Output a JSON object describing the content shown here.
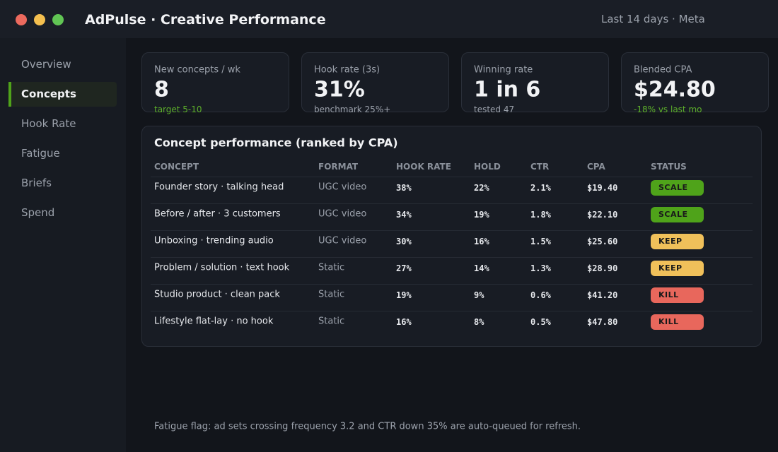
{
  "header": {
    "title": "AdPulse · Creative Performance",
    "range": "Last 14 days · Meta"
  },
  "nav": [
    "Overview",
    "Concepts",
    "Hook Rate",
    "Fatigue",
    "Briefs",
    "Spend"
  ],
  "active_nav": 1,
  "kpis": [
    {
      "label": "New concepts / wk",
      "value": "8",
      "note": "target 5-10",
      "note_tone": "good"
    },
    {
      "label": "Hook rate (3s)",
      "value": "31%",
      "note": "benchmark 25%+",
      "note_tone": "muted"
    },
    {
      "label": "Winning rate",
      "value": "1 in 6",
      "note": "tested 47",
      "note_tone": "muted"
    },
    {
      "label": "Blended CPA",
      "value": "$24.80",
      "note": "-18% vs last mo",
      "note_tone": "good"
    }
  ],
  "table": {
    "title": "Concept performance (ranked by CPA)",
    "columns": [
      "CONCEPT",
      "FORMAT",
      "HOOK RATE",
      "HOLD",
      "CTR",
      "CPA",
      "STATUS"
    ],
    "rows": [
      [
        "Founder story · talking head",
        "UGC video",
        "38%",
        "22%",
        "2.1%",
        "$19.40",
        "SCALE"
      ],
      [
        "Before / after · 3 customers",
        "UGC video",
        "34%",
        "19%",
        "1.8%",
        "$22.10",
        "SCALE"
      ],
      [
        "Unboxing · trending audio",
        "UGC video",
        "30%",
        "16%",
        "1.5%",
        "$25.60",
        "KEEP"
      ],
      [
        "Problem / solution · text hook",
        "Static",
        "27%",
        "14%",
        "1.3%",
        "$28.90",
        "KEEP"
      ],
      [
        "Studio product · clean pack",
        "Static",
        "19%",
        "9%",
        "0.6%",
        "$41.20",
        "KILL"
      ],
      [
        "Lifestyle flat-lay · no hook",
        "Static",
        "16%",
        "8%",
        "0.5%",
        "$47.80",
        "KILL"
      ]
    ]
  },
  "footer": "Fatigue flag: ad sets crossing frequency 3.2 and CTR down 35% are auto-queued for refresh."
}
